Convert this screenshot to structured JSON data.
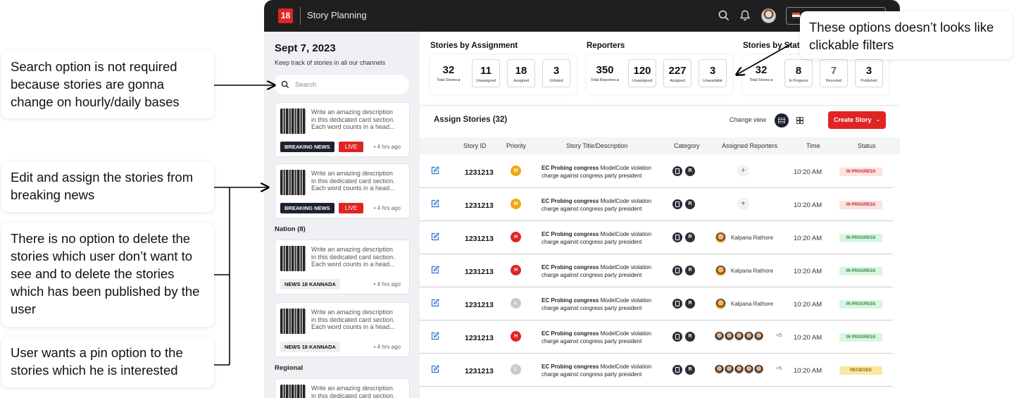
{
  "notes": {
    "search": [
      "Search option is not required",
      "because stories are gonna",
      "change on hourly/daily bases"
    ],
    "edit": [
      "Edit and assign the stories from",
      "breaking news"
    ],
    "delete": [
      "There is no option to delete the",
      "stories which user don’t want to",
      "see and to delete the stories",
      "which has been  published by the",
      "user"
    ],
    "pin": [
      "User wants a pin option to the",
      "stories which he is interested"
    ],
    "filters": [
      "These  options doesn’t looks like",
      "clickable filters"
    ]
  },
  "app": {
    "logo": "18",
    "title": "Story Planning"
  },
  "left": {
    "date": "Sept 7, 2023",
    "subtitle": "Keep track of stories in all our channels",
    "search_placeholder": "Search",
    "desc_lines": [
      "Write an amazing description",
      "in this dedicated card section.",
      "Each word counts in a head..."
    ],
    "last_desc_lines": [
      "Write an amazing description",
      "in this dedicated card section."
    ],
    "cards": [
      {
        "badge": "BREAKING NEWS",
        "live": "LIVE",
        "ago": "• 4 hrs ago"
      },
      {
        "badge": "BREAKING NEWS",
        "live": "LIVE",
        "ago": "• 4 hrs ago"
      },
      {
        "badge": "NEWS 18 KANNADA",
        "ago": "• 4 hrs ago"
      },
      {
        "badge": "NEWS 18 KANNADA",
        "ago": "• 4 hrs ago"
      }
    ],
    "section_nation": "Nation (8)",
    "section_regional": "Regional"
  },
  "stats": {
    "assignment": {
      "title": "Stories by Assignment",
      "items": [
        {
          "num": "32",
          "label": "Total Stories ▸"
        },
        {
          "num": "11",
          "label": "Unassigned"
        },
        {
          "num": "18",
          "label": "Assigned"
        },
        {
          "num": "3",
          "label": "Unlisted"
        }
      ]
    },
    "reporters": {
      "title": "Reporters",
      "items": [
        {
          "num": "350",
          "label": "Total Reporters ▸"
        },
        {
          "num": "120",
          "label": "Unassigned"
        },
        {
          "num": "227",
          "label": "Assigned"
        },
        {
          "num": "3",
          "label": "Unavailable"
        }
      ]
    },
    "status": {
      "title": "Stories by Status",
      "items": [
        {
          "num": "32",
          "label": "Total Stories ▸"
        },
        {
          "num": "8",
          "label": "In Progress"
        },
        {
          "num": "7",
          "label": "Recevied"
        },
        {
          "num": "3",
          "label": "Published"
        }
      ]
    }
  },
  "list": {
    "title": "Assign Stories (32)",
    "change_view": "Change view",
    "create_label": "Create Story",
    "create_chevron": "⌄",
    "columns": [
      "Story ID",
      "Priority",
      "Story Title/Description",
      "Category",
      "Assigned Reporters",
      "Time",
      "Status"
    ],
    "rows": [
      {
        "id": "1231213",
        "prio": "M",
        "prio_color": "#f2a515",
        "bold": "EC Probing congress",
        "rest": " ModelCode violation",
        "line2": "charge against congress party president",
        "cat_r": "R",
        "assign": "add",
        "time": "10:20 AM",
        "status": "IN PROGRESS",
        "status_kind": "red"
      },
      {
        "id": "1231213",
        "prio": "M",
        "prio_color": "#f2a515",
        "bold": "EC Probing congress",
        "rest": " ModelCode violation",
        "line2": "charge against congress party president",
        "cat_r": "R",
        "assign": "add",
        "time": "10:20 AM",
        "status": "IN PROGRESS",
        "status_kind": "red"
      },
      {
        "id": "1231213",
        "prio": "H",
        "prio_color": "#e02424",
        "bold": "EC Probing congress",
        "rest": " ModelCode violation",
        "line2": "charge against congress party president",
        "cat_r": "R",
        "assign": "single",
        "reporter": "Kalpana Rathore",
        "time": "10:20 AM",
        "status": "IN PROGRESS",
        "status_kind": "green"
      },
      {
        "id": "1231213",
        "prio": "H",
        "prio_color": "#e02424",
        "bold": "EC Probing congress",
        "rest": " ModelCode violation",
        "line2": "charge against congress party president",
        "cat_r": "R",
        "assign": "single",
        "reporter": "Kalpana Rathore",
        "time": "10:20 AM",
        "status": "IN PROGRESS",
        "status_kind": "green"
      },
      {
        "id": "1231213",
        "prio": "L",
        "prio_color": "#c7c9cc",
        "bold": "EC Probing congress",
        "rest": " ModelCode violation",
        "line2": "charge against congress party president",
        "cat_r": "R",
        "assign": "single",
        "reporter": "Kalpana Rathore",
        "time": "10:20 AM",
        "status": "IN PROGRESS",
        "status_kind": "green"
      },
      {
        "id": "1231213",
        "prio": "H",
        "prio_color": "#e02424",
        "bold": "EC Probing congress",
        "rest": " ModelCode violation",
        "line2": "charge against congress party president",
        "cat_r": "R",
        "assign": "group",
        "more": "+5",
        "time": "10:20 AM",
        "status": "IN PROGRESS",
        "status_kind": "green"
      },
      {
        "id": "1231213",
        "prio": "L",
        "prio_color": "#c7c9cc",
        "bold": "EC Probing congress",
        "rest": " ModelCode violation",
        "line2": "charge against congress party president",
        "cat_r": "R",
        "assign": "group",
        "more": "+5",
        "time": "10:20 AM",
        "status": "RECIEVED",
        "status_kind": "yellow"
      }
    ]
  },
  "icons": [
    "search-icon",
    "bell-icon",
    "edit-icon",
    "list-view-icon",
    "grid-view-icon",
    "flag-icon"
  ],
  "colors": {
    "accent": "#e02424",
    "dark": "#1c2230",
    "topbar": "#1f1f1f"
  }
}
